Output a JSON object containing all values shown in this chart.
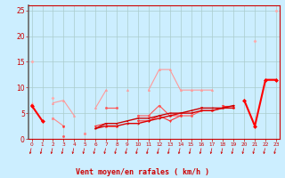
{
  "title": "",
  "xlabel": "Vent moyen/en rafales ( km/h )",
  "bg_color": "#cceeff",
  "grid_color": "#aacccc",
  "x_values": [
    0,
    1,
    2,
    3,
    4,
    5,
    6,
    7,
    8,
    9,
    10,
    11,
    12,
    13,
    14,
    15,
    16,
    17,
    18,
    19,
    20,
    21,
    22,
    23
  ],
  "series": [
    {
      "color": "#ffaaaa",
      "linewidth": 0.8,
      "marker": "D",
      "markersize": 1.5,
      "connect": true,
      "y": [
        15,
        null,
        8,
        null,
        null,
        null,
        null,
        null,
        null,
        null,
        null,
        null,
        null,
        null,
        null,
        null,
        null,
        null,
        null,
        null,
        null,
        19,
        null,
        25
      ]
    },
    {
      "color": "#ff9999",
      "linewidth": 0.8,
      "marker": "^",
      "markersize": 1.5,
      "connect": true,
      "y": [
        7,
        null,
        7,
        7.5,
        4.5,
        null,
        6,
        9.5,
        null,
        9.5,
        null,
        9.5,
        13.5,
        13.5,
        9.5,
        9.5,
        9.5,
        9.5,
        null,
        null,
        null,
        null,
        11.5,
        11.5
      ]
    },
    {
      "color": "#ff8888",
      "linewidth": 0.8,
      "marker": "s",
      "markersize": 1.5,
      "connect": true,
      "y": [
        6.5,
        null,
        4,
        2.5,
        null,
        1,
        null,
        2.5,
        2.5,
        null,
        null,
        null,
        null,
        null,
        null,
        null,
        null,
        null,
        null,
        null,
        null,
        null,
        null,
        null
      ]
    },
    {
      "color": "#ff5555",
      "linewidth": 0.8,
      "marker": "o",
      "markersize": 1.5,
      "connect": true,
      "y": [
        6.5,
        null,
        null,
        0.5,
        null,
        null,
        null,
        6,
        6,
        null,
        4.5,
        4.5,
        6.5,
        4.5,
        4.5,
        4.5,
        5.5,
        5.5,
        6,
        6,
        null,
        null,
        null,
        null
      ]
    },
    {
      "color": "#ff3333",
      "linewidth": 0.8,
      "marker": "v",
      "markersize": 1.5,
      "connect": true,
      "y": [
        6.5,
        null,
        null,
        2.5,
        null,
        null,
        2.5,
        3,
        null,
        null,
        3.5,
        3.5,
        4.5,
        3.5,
        4.5,
        null,
        6,
        null,
        6.5,
        6.5,
        null,
        null,
        null,
        null
      ]
    },
    {
      "color": "#dd0000",
      "linewidth": 1.0,
      "marker": "4",
      "markersize": 2,
      "connect": true,
      "y": [
        6.5,
        null,
        null,
        null,
        null,
        null,
        2,
        2.5,
        2.5,
        3,
        3,
        3.5,
        4,
        4.5,
        5,
        5,
        5.5,
        5.5,
        6,
        6,
        null,
        null,
        null,
        null
      ]
    },
    {
      "color": "#cc0000",
      "linewidth": 1.0,
      "marker": "3",
      "markersize": 2,
      "connect": true,
      "y": [
        6.5,
        null,
        null,
        null,
        null,
        null,
        2,
        3,
        3,
        3.5,
        4,
        4,
        4.5,
        5,
        5,
        5.5,
        6,
        6,
        6,
        6.5,
        null,
        null,
        null,
        null
      ]
    },
    {
      "color": "#ff0000",
      "linewidth": 1.5,
      "marker": "D",
      "markersize": 2,
      "connect": false,
      "segments": [
        {
          "x": [
            0,
            1
          ],
          "y": [
            6.5,
            3.5
          ]
        },
        {
          "x": [
            20,
            21,
            22,
            23
          ],
          "y": [
            7.5,
            2.5,
            11.5,
            11.5
          ]
        }
      ]
    }
  ],
  "xlim": [
    -0.3,
    23.3
  ],
  "ylim": [
    0,
    26
  ],
  "yticks": [
    0,
    5,
    10,
    15,
    20,
    25
  ],
  "xtick_labels": [
    "0",
    "1",
    "2",
    "3",
    "4",
    "5",
    "6",
    "7",
    "8",
    "9",
    "10",
    "11",
    "12",
    "13",
    "14",
    "15",
    "16",
    "17",
    "18",
    "19",
    "20",
    "21",
    "22",
    "23"
  ]
}
